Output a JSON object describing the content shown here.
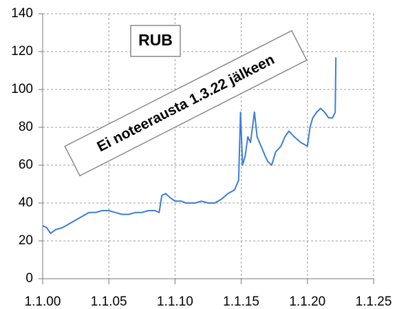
{
  "chart_data": {
    "type": "line",
    "annotations": [
      "RUB",
      "Ei noteerausta 1.3.22 jälkeen"
    ],
    "x": [
      2000.0,
      2000.3,
      2000.6,
      2001.0,
      2001.5,
      2002.0,
      2002.5,
      2003.0,
      2003.5,
      2004.0,
      2004.5,
      2005.0,
      2005.5,
      2006.0,
      2006.5,
      2007.0,
      2007.5,
      2008.0,
      2008.5,
      2008.8,
      2009.0,
      2009.3,
      2009.6,
      2010.0,
      2010.5,
      2010.8,
      2011.0,
      2011.5,
      2012.0,
      2012.5,
      2013.0,
      2013.5,
      2014.0,
      2014.5,
      2014.8,
      2014.95,
      2015.1,
      2015.3,
      2015.5,
      2015.7,
      2016.0,
      2016.2,
      2016.5,
      2016.8,
      2017.0,
      2017.3,
      2017.6,
      2018.0,
      2018.3,
      2018.6,
      2019.0,
      2019.5,
      2020.0,
      2020.2,
      2020.4,
      2020.7,
      2021.0,
      2021.3,
      2021.6,
      2021.9,
      2022.1,
      2022.15
    ],
    "values": [
      28,
      27,
      24,
      26,
      27,
      29,
      31,
      33,
      35,
      35,
      36,
      36,
      35,
      34,
      34,
      35,
      35,
      36,
      36,
      35,
      44,
      45,
      43,
      41,
      41,
      40,
      40,
      40,
      41,
      40,
      40,
      42,
      45,
      47,
      52,
      88,
      60,
      65,
      75,
      72,
      88,
      75,
      70,
      65,
      62,
      60,
      67,
      70,
      75,
      78,
      75,
      72,
      70,
      80,
      85,
      88,
      90,
      88,
      85,
      85,
      88,
      117
    ],
    "color": "#3a7dd8",
    "xlim": [
      2000,
      2025
    ],
    "xticks": [
      {
        "value": 2000,
        "label": "1.1.00"
      },
      {
        "value": 2005,
        "label": "1.1.05"
      },
      {
        "value": 2010,
        "label": "1.1.10"
      },
      {
        "value": 2015,
        "label": "1.1.15"
      },
      {
        "value": 2020,
        "label": "1.1.20"
      },
      {
        "value": 2025,
        "label": "1.1.25"
      }
    ],
    "ylim": [
      0,
      140
    ],
    "yticks": [
      0,
      20,
      40,
      60,
      80,
      100,
      120,
      140
    ],
    "grid": true
  }
}
